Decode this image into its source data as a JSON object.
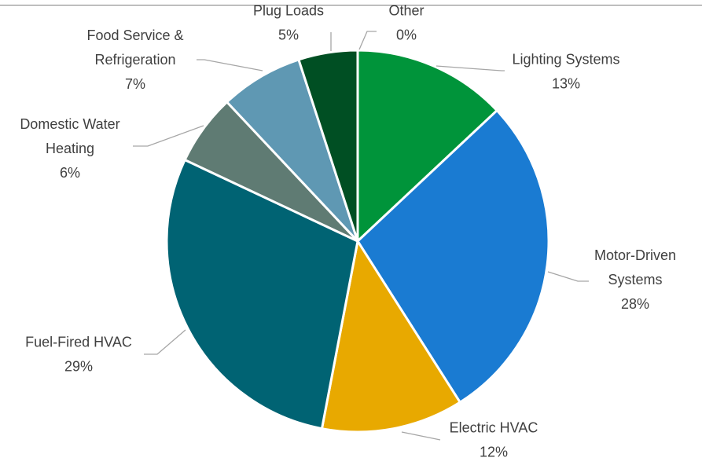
{
  "chart_data": {
    "type": "pie",
    "title": "",
    "legend": "none",
    "slices": [
      {
        "name": "Lighting Systems",
        "label_lines": [
          "Lighting Systems",
          "13%"
        ],
        "value": 13,
        "color": "#00943a"
      },
      {
        "name": "Motor-Driven Systems",
        "label_lines": [
          "Motor-Driven",
          "Systems",
          "28%"
        ],
        "value": 28,
        "color": "#1a7bd2"
      },
      {
        "name": "Electric HVAC",
        "label_lines": [
          "Electric HVAC",
          "12%"
        ],
        "value": 12,
        "color": "#e8a900"
      },
      {
        "name": "Fuel-Fired HVAC",
        "label_lines": [
          "Fuel-Fired HVAC",
          "29%"
        ],
        "value": 29,
        "color": "#006373"
      },
      {
        "name": "Domestic Water Heating",
        "label_lines": [
          "Domestic Water",
          "Heating",
          "6%"
        ],
        "value": 6,
        "color": "#5f7b73"
      },
      {
        "name": "Food Service & Refrigeration",
        "label_lines": [
          "Food Service &",
          "Refrigeration",
          "7%"
        ],
        "value": 7,
        "color": "#5f98b3"
      },
      {
        "name": "Plug Loads",
        "label_lines": [
          "Plug Loads",
          "5%"
        ],
        "value": 5,
        "color": "#004f23"
      },
      {
        "name": "Other",
        "label_lines": [
          "Other",
          "0%"
        ],
        "value": 0,
        "color": "#2e8b57"
      }
    ]
  }
}
